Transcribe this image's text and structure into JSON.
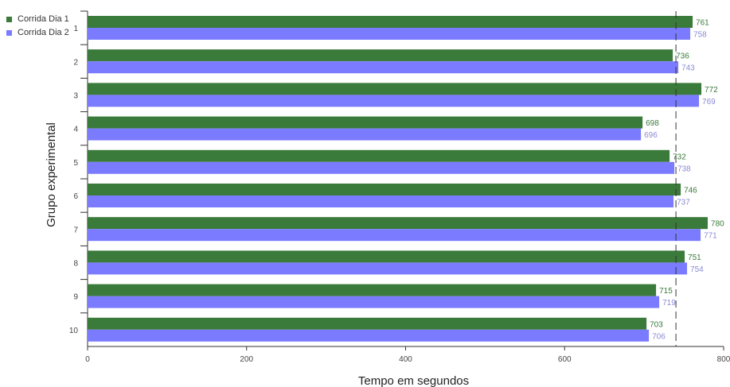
{
  "chart_data": {
    "type": "bar",
    "orientation": "horizontal",
    "title": "",
    "xlabel": "Tempo em segundos",
    "ylabel": "Grupo experimental",
    "xlim": [
      0,
      800
    ],
    "x_ticks": [
      "0",
      "200",
      "400",
      "600",
      "800"
    ],
    "categories": [
      "1",
      "2",
      "3",
      "4",
      "5",
      "6",
      "7",
      "8",
      "9",
      "10"
    ],
    "series": [
      {
        "name": "Corrida Dia 1",
        "color": "#3a7a3a",
        "label_color": "#3a7a3a",
        "values": [
          761,
          736,
          772,
          698,
          732,
          746,
          780,
          751,
          715,
          703
        ]
      },
      {
        "name": "Corrida Dia 2",
        "color": "#7b7bff",
        "label_color": "#8a8ad6",
        "values": [
          758,
          743,
          769,
          696,
          738,
          737,
          771,
          754,
          719,
          706
        ]
      }
    ],
    "reference_line": {
      "value": 740,
      "style": "dashed"
    },
    "legend_position": "top-left",
    "grid": false
  }
}
